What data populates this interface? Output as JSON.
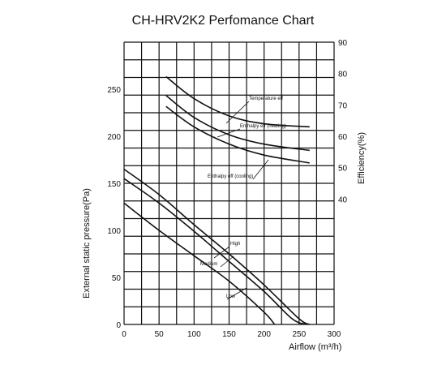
{
  "chart_data": {
    "type": "line",
    "title": "CH-HRV2K2  Perfomance Chart",
    "xlabel": "Airflow (m³/h)",
    "ylabel_left": "External static pressure(Pa)",
    "ylabel_right": "Efficiency(%)",
    "xlim": [
      0,
      300
    ],
    "ylim_left": [
      0,
      300
    ],
    "ylim_right": [
      0,
      90
    ],
    "x_ticks": [
      "0",
      "50",
      "100",
      "150",
      "200",
      "250",
      "300"
    ],
    "y_left_ticks": [
      "0",
      "50",
      "100",
      "150",
      "200",
      "250"
    ],
    "y_right_ticks": [
      "40",
      "50",
      "60",
      "70",
      "80",
      "90"
    ],
    "grid": true,
    "pressure_series": [
      {
        "name": "High",
        "x": [
          0,
          50,
          100,
          150,
          200,
          250,
          265
        ],
        "y": [
          165,
          138,
          106,
          75,
          42,
          6,
          0
        ]
      },
      {
        "name": "Medium",
        "x": [
          0,
          50,
          100,
          150,
          200,
          240,
          260
        ],
        "y": [
          155,
          129,
          99,
          67,
          35,
          6,
          0
        ]
      },
      {
        "name": "Low",
        "x": [
          0,
          50,
          100,
          150,
          200,
          215
        ],
        "y": [
          129,
          100,
          73,
          46,
          13,
          0
        ]
      }
    ],
    "efficiency_series": [
      {
        "name": "Temperature eff",
        "x": [
          60,
          100,
          150,
          200,
          265
        ],
        "y": [
          79,
          72,
          66.5,
          64,
          63
        ]
      },
      {
        "name": "Enthalpy eff (heating)",
        "x": [
          60,
          100,
          150,
          200,
          265
        ],
        "y": [
          73,
          66,
          60.5,
          57.5,
          55.5
        ]
      },
      {
        "name": "Enthalpy eff (cooling)",
        "x": [
          60,
          100,
          150,
          200,
          265
        ],
        "y": [
          69.5,
          63,
          57.5,
          54,
          51.5
        ]
      }
    ],
    "annotations": {
      "temperature": "Temperature eff",
      "enthalpy_heating": "Enthalpy eff (heating)",
      "enthalpy_cooling": "Enthalpy eff (cooling)",
      "high": "High",
      "medium": "Medium",
      "low": "Low"
    }
  }
}
